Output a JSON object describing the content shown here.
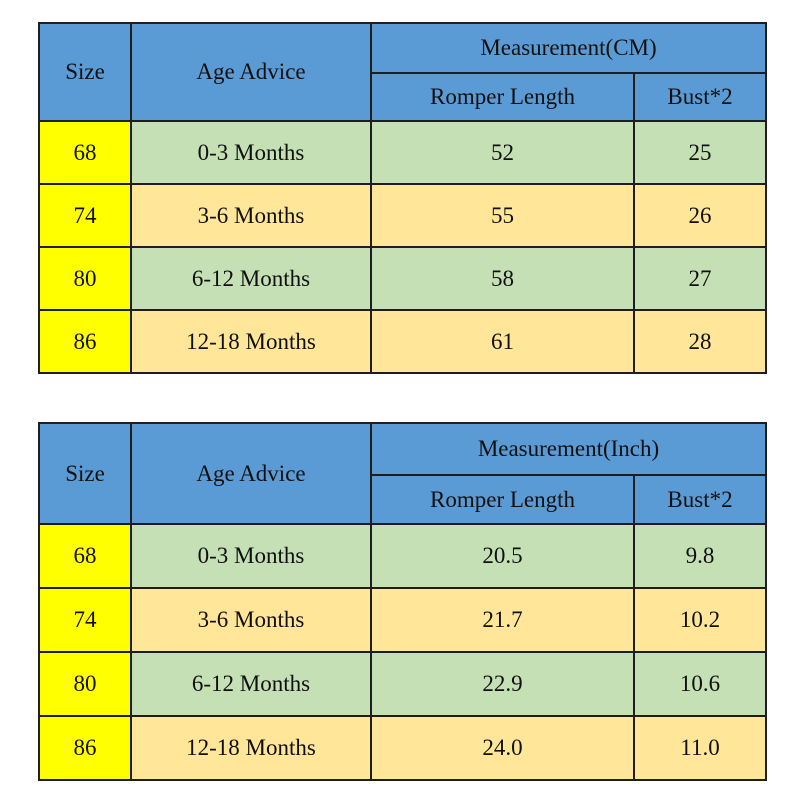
{
  "page": {
    "background": "#ffffff"
  },
  "colors": {
    "header_blue": "#5b9bd5",
    "size_column_yellow": "#ffff00",
    "row_green": "#c5e0b4",
    "row_tan": "#ffe699",
    "border": "#1e1e1e",
    "text": "#101010"
  },
  "chart_data": [
    {
      "type": "table",
      "group_header": "Measurement(CM)",
      "columns": [
        "Size",
        "Age Advice",
        "Romper Length",
        "Bust*2"
      ],
      "rows": [
        [
          "68",
          "0-3 Months",
          "52",
          "25"
        ],
        [
          "74",
          "3-6 Months",
          "55",
          "26"
        ],
        [
          "80",
          "6-12 Months",
          "58",
          "27"
        ],
        [
          "86",
          "12-18 Months",
          "61",
          "28"
        ]
      ]
    },
    {
      "type": "table",
      "group_header": "Measurement(Inch)",
      "columns": [
        "Size",
        "Age Advice",
        "Romper Length",
        "Bust*2"
      ],
      "rows": [
        [
          "68",
          "0-3 Months",
          "20.5",
          "9.8"
        ],
        [
          "74",
          "3-6 Months",
          "21.7",
          "10.2"
        ],
        [
          "80",
          "6-12 Months",
          "22.9",
          "10.6"
        ],
        [
          "86",
          "12-18 Months",
          "24.0",
          "11.0"
        ]
      ]
    }
  ]
}
